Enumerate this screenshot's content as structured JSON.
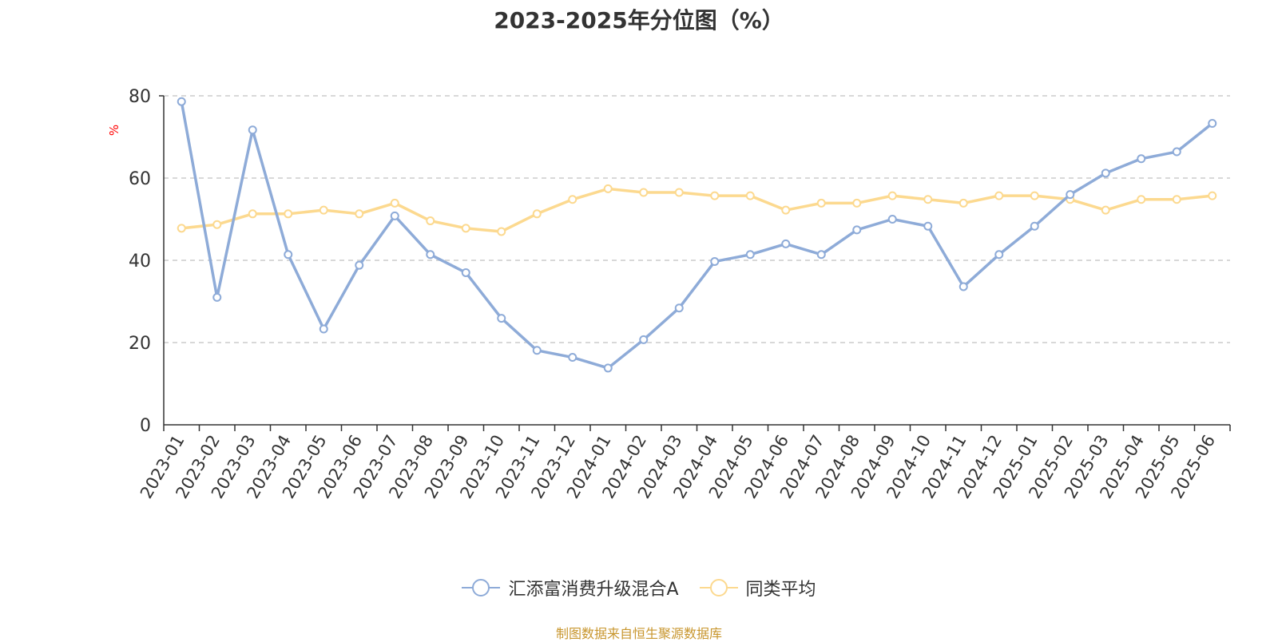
{
  "chart_data": {
    "type": "line",
    "title": "2023-2025年分位图（%）",
    "ylabel": "%",
    "ylim": [
      0,
      80
    ],
    "yticks": [
      0,
      20,
      40,
      60,
      80
    ],
    "grid": true,
    "legend_position": "bottom",
    "categories": [
      "2023-01",
      "2023-02",
      "2023-03",
      "2023-04",
      "2023-05",
      "2023-06",
      "2023-07",
      "2023-08",
      "2023-09",
      "2023-10",
      "2023-11",
      "2023-12",
      "2024-01",
      "2024-02",
      "2024-03",
      "2024-04",
      "2024-05",
      "2024-06",
      "2024-07",
      "2024-08",
      "2024-09",
      "2024-10",
      "2024-11",
      "2024-12",
      "2025-01",
      "2025-02",
      "2025-03",
      "2025-04",
      "2025-05",
      "2025-06"
    ],
    "series": [
      {
        "name": "汇添富消费升级混合A",
        "color": "#8eabd8",
        "values": [
          78.6,
          31.0,
          71.7,
          41.4,
          23.3,
          38.8,
          50.8,
          41.4,
          37.0,
          25.9,
          18.1,
          16.4,
          13.8,
          20.7,
          28.4,
          39.7,
          41.4,
          44.0,
          41.4,
          47.4,
          50.0,
          48.3,
          33.6,
          41.4,
          48.3,
          56.0,
          61.2,
          64.7,
          66.4,
          73.3
        ]
      },
      {
        "name": "同类平均",
        "color": "#fcd98f",
        "values": [
          47.8,
          48.7,
          51.3,
          51.3,
          52.2,
          51.3,
          53.9,
          49.6,
          47.8,
          47.0,
          51.3,
          54.8,
          57.4,
          56.5,
          56.5,
          55.7,
          55.7,
          52.2,
          53.9,
          53.9,
          55.7,
          54.8,
          53.9,
          55.7,
          55.7,
          54.8,
          52.2,
          54.8,
          54.8,
          55.7
        ]
      }
    ]
  },
  "source_note": "制图数据来自恒生聚源数据库"
}
